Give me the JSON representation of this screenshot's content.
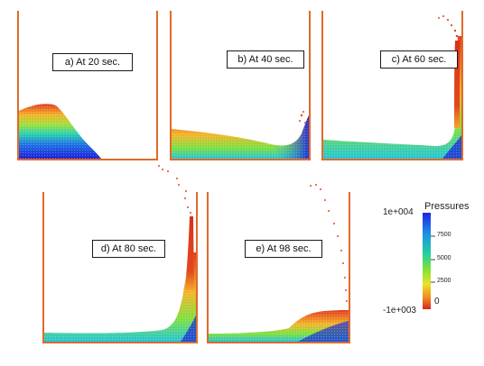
{
  "panels": [
    {
      "id": "a",
      "label": "a) At 20 sec."
    },
    {
      "id": "b",
      "label": "b) At 40 sec."
    },
    {
      "id": "c",
      "label": "c) At 60 sec."
    },
    {
      "id": "d",
      "label": "d) At 80 sec."
    },
    {
      "id": "e",
      "label": "e) At 98 sec."
    }
  ],
  "legend": {
    "title": "Pressures",
    "max_label": "1e+004",
    "min_label": "-1e+003",
    "ticks": [
      "7500",
      "5000",
      "2500",
      "0"
    ]
  },
  "colors": {
    "wall": "#e06a2a",
    "particle_low": "#d2281e",
    "particle_high": "#1a1ee0"
  }
}
